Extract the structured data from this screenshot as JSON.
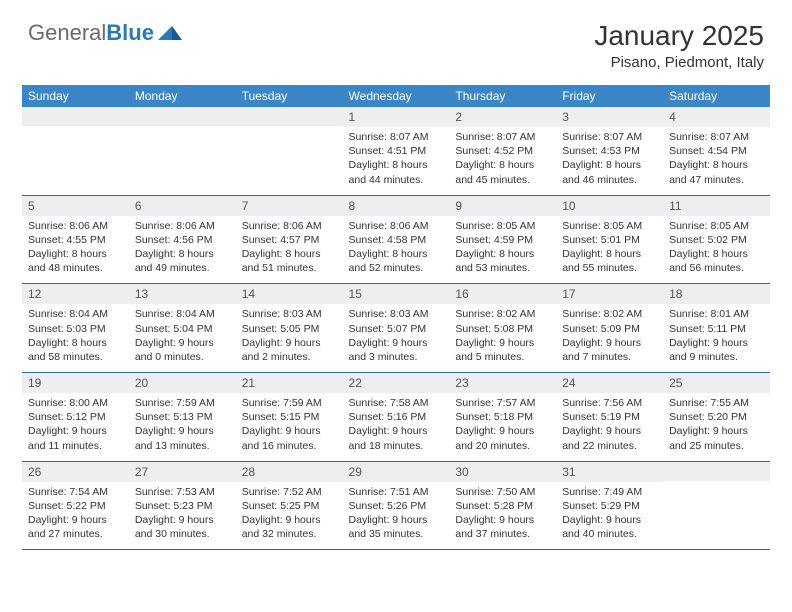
{
  "logo": {
    "text_general": "General",
    "text_blue": "Blue"
  },
  "title": {
    "month": "January 2025",
    "location": "Pisano, Piedmont, Italy"
  },
  "colors": {
    "header_bg": "#3b86c7",
    "header_text": "#ffffff",
    "daynum_bg": "#eceef0",
    "row_border": "#2a6aa8",
    "logo_gray": "#6a6a6a",
    "logo_blue": "#2a7ab8",
    "body_text": "#333333"
  },
  "weekdays": [
    "Sunday",
    "Monday",
    "Tuesday",
    "Wednesday",
    "Thursday",
    "Friday",
    "Saturday"
  ],
  "layout": {
    "first_weekday_index": 3,
    "days_in_month": 31
  },
  "days": {
    "1": {
      "sunrise": "8:07 AM",
      "sunset": "4:51 PM",
      "daylight": "8 hours and 44 minutes."
    },
    "2": {
      "sunrise": "8:07 AM",
      "sunset": "4:52 PM",
      "daylight": "8 hours and 45 minutes."
    },
    "3": {
      "sunrise": "8:07 AM",
      "sunset": "4:53 PM",
      "daylight": "8 hours and 46 minutes."
    },
    "4": {
      "sunrise": "8:07 AM",
      "sunset": "4:54 PM",
      "daylight": "8 hours and 47 minutes."
    },
    "5": {
      "sunrise": "8:06 AM",
      "sunset": "4:55 PM",
      "daylight": "8 hours and 48 minutes."
    },
    "6": {
      "sunrise": "8:06 AM",
      "sunset": "4:56 PM",
      "daylight": "8 hours and 49 minutes."
    },
    "7": {
      "sunrise": "8:06 AM",
      "sunset": "4:57 PM",
      "daylight": "8 hours and 51 minutes."
    },
    "8": {
      "sunrise": "8:06 AM",
      "sunset": "4:58 PM",
      "daylight": "8 hours and 52 minutes."
    },
    "9": {
      "sunrise": "8:05 AM",
      "sunset": "4:59 PM",
      "daylight": "8 hours and 53 minutes."
    },
    "10": {
      "sunrise": "8:05 AM",
      "sunset": "5:01 PM",
      "daylight": "8 hours and 55 minutes."
    },
    "11": {
      "sunrise": "8:05 AM",
      "sunset": "5:02 PM",
      "daylight": "8 hours and 56 minutes."
    },
    "12": {
      "sunrise": "8:04 AM",
      "sunset": "5:03 PM",
      "daylight": "8 hours and 58 minutes."
    },
    "13": {
      "sunrise": "8:04 AM",
      "sunset": "5:04 PM",
      "daylight": "9 hours and 0 minutes."
    },
    "14": {
      "sunrise": "8:03 AM",
      "sunset": "5:05 PM",
      "daylight": "9 hours and 2 minutes."
    },
    "15": {
      "sunrise": "8:03 AM",
      "sunset": "5:07 PM",
      "daylight": "9 hours and 3 minutes."
    },
    "16": {
      "sunrise": "8:02 AM",
      "sunset": "5:08 PM",
      "daylight": "9 hours and 5 minutes."
    },
    "17": {
      "sunrise": "8:02 AM",
      "sunset": "5:09 PM",
      "daylight": "9 hours and 7 minutes."
    },
    "18": {
      "sunrise": "8:01 AM",
      "sunset": "5:11 PM",
      "daylight": "9 hours and 9 minutes."
    },
    "19": {
      "sunrise": "8:00 AM",
      "sunset": "5:12 PM",
      "daylight": "9 hours and 11 minutes."
    },
    "20": {
      "sunrise": "7:59 AM",
      "sunset": "5:13 PM",
      "daylight": "9 hours and 13 minutes."
    },
    "21": {
      "sunrise": "7:59 AM",
      "sunset": "5:15 PM",
      "daylight": "9 hours and 16 minutes."
    },
    "22": {
      "sunrise": "7:58 AM",
      "sunset": "5:16 PM",
      "daylight": "9 hours and 18 minutes."
    },
    "23": {
      "sunrise": "7:57 AM",
      "sunset": "5:18 PM",
      "daylight": "9 hours and 20 minutes."
    },
    "24": {
      "sunrise": "7:56 AM",
      "sunset": "5:19 PM",
      "daylight": "9 hours and 22 minutes."
    },
    "25": {
      "sunrise": "7:55 AM",
      "sunset": "5:20 PM",
      "daylight": "9 hours and 25 minutes."
    },
    "26": {
      "sunrise": "7:54 AM",
      "sunset": "5:22 PM",
      "daylight": "9 hours and 27 minutes."
    },
    "27": {
      "sunrise": "7:53 AM",
      "sunset": "5:23 PM",
      "daylight": "9 hours and 30 minutes."
    },
    "28": {
      "sunrise": "7:52 AM",
      "sunset": "5:25 PM",
      "daylight": "9 hours and 32 minutes."
    },
    "29": {
      "sunrise": "7:51 AM",
      "sunset": "5:26 PM",
      "daylight": "9 hours and 35 minutes."
    },
    "30": {
      "sunrise": "7:50 AM",
      "sunset": "5:28 PM",
      "daylight": "9 hours and 37 minutes."
    },
    "31": {
      "sunrise": "7:49 AM",
      "sunset": "5:29 PM",
      "daylight": "9 hours and 40 minutes."
    }
  },
  "labels": {
    "sunrise": "Sunrise:",
    "sunset": "Sunset:",
    "daylight": "Daylight:"
  }
}
